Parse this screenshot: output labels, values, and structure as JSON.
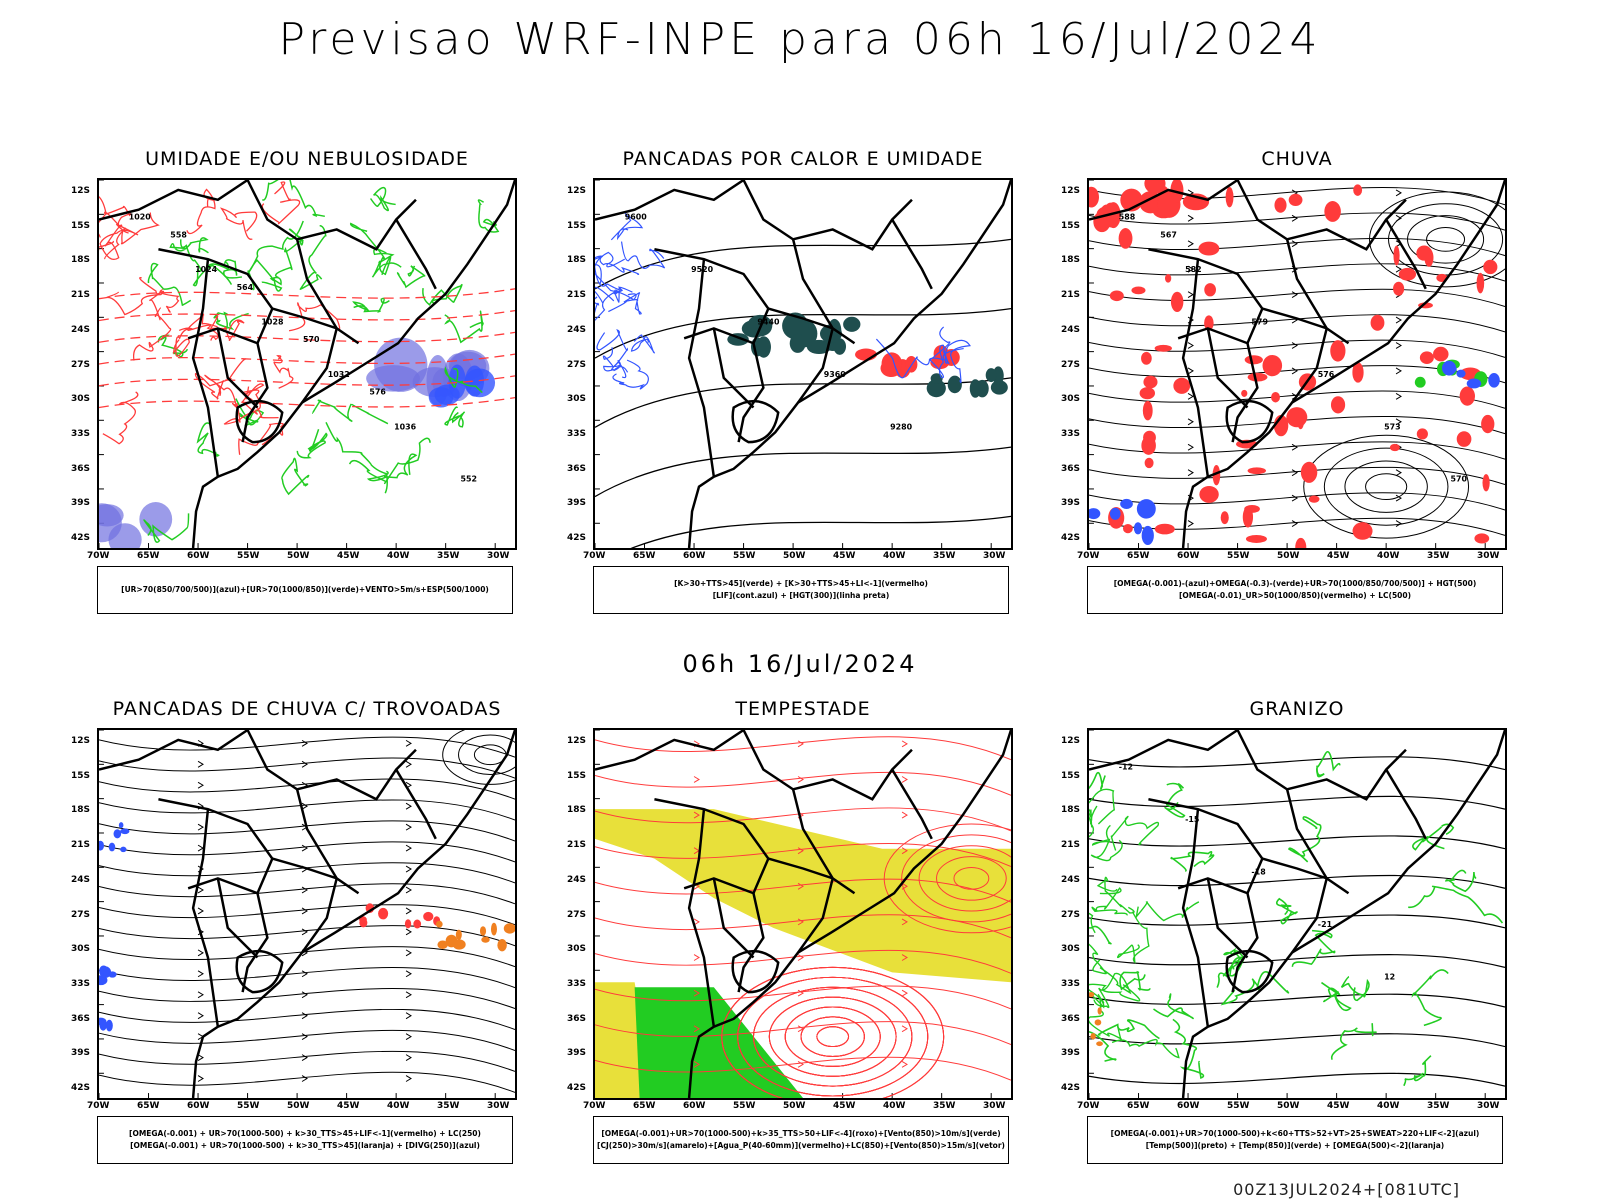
{
  "title": "Previsao WRF-INPE  para 06h 16/Jul/2024",
  "subtitle": "06h 16/Jul/2024",
  "footer": "00Z13JUL2024+[081UTC]",
  "lat_ticks": [
    "12S",
    "15S",
    "18S",
    "21S",
    "24S",
    "27S",
    "30S",
    "33S",
    "36S",
    "39S",
    "42S"
  ],
  "lon_ticks": [
    "70W",
    "65W",
    "60W",
    "55W",
    "50W",
    "45W",
    "40W",
    "35W",
    "30W"
  ],
  "colors": {
    "red": "#ff3b3b",
    "green": "#22cc22",
    "blue": "#3355ff",
    "yellow": "#e8e03a",
    "orange": "#f08020",
    "teal": "#1f4e4e",
    "purple": "#7070e0"
  },
  "panels": [
    {
      "title": "UMIDADE E/OU NEBULOSIDADE",
      "legend": [
        "[UR>70(850/700/500)](azul)+[UR>70(1000/850)](verde)+VENTO>5m/s+ESP(500/1000)"
      ],
      "labels": [
        "1020",
        "1024",
        "1028",
        "1032",
        "1036",
        "552",
        "558",
        "564",
        "570",
        "576"
      ]
    },
    {
      "title": "PANCADAS POR CALOR E UMIDADE",
      "legend": [
        "[K>30+TTS>45](verde) + [K>30+TTS>45+LI<-1](vermelho)",
        "[LIF](cont.azul) + [HGT(300)](linha preta)"
      ],
      "labels": [
        "9600",
        "9520",
        "9440",
        "9360",
        "9280"
      ]
    },
    {
      "title": "CHUVA",
      "legend": [
        "[OMEGA(-0.001)-(azul)+OMEGA(-0.3)-(verde)+UR>70(1000/850/700/500)] + HGT(500)",
        "[OMEGA(-0.01)_UR>50(1000/850)(vermelho) + LC(500)"
      ],
      "labels": [
        "588",
        "582",
        "579",
        "576",
        "573",
        "570",
        "567"
      ]
    },
    {
      "title": "PANCADAS DE CHUVA C/ TROVOADAS",
      "legend": [
        "[OMEGA(-0.001) + UR>70(1000-500) + k>30_TTS>45+LIF<-1](vermelho) + LC(250)",
        "[OMEGA(-0.001) + UR>70(1000-500) + k>30_TTS>45](laranja) + [DIVG(250)](azul)"
      ],
      "labels": []
    },
    {
      "title": "TEMPESTADE",
      "legend": [
        "[OMEGA(-0.001)+UR>70(1000-500)+k>35_TTS>50+LIF<-4](roxo)+[Vento(850)>10m/s](verde)",
        "[CJ(250)>30m/s](amarelo)+[Agua_P(40-60mm)](vermelho)+LC(850)+[Vento(850)>15m/s](vetor)"
      ],
      "labels": []
    },
    {
      "title": "GRANIZO",
      "legend": [
        "[OMEGA(-0.001)+UR>70(1000-500)+k<60+TTS>52+VT>25+SWEAT>220+LIF<-2](azul)",
        "[Temp(500)](preto) + [Temp(850)](verde) + [OMEGA(500)<-2](laranja)"
      ],
      "labels": [
        "-12",
        "-15",
        "-18",
        "-21",
        "12"
      ]
    }
  ]
}
